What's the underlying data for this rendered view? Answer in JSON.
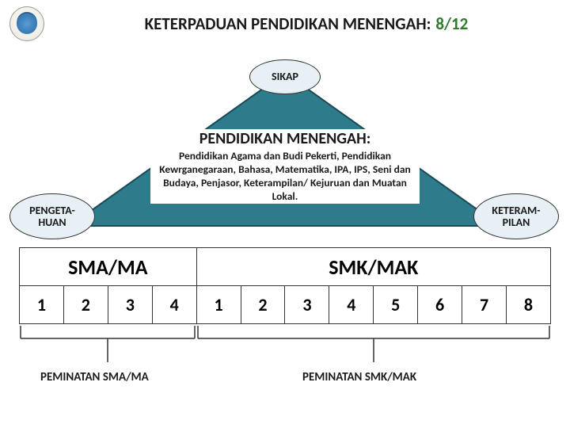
{
  "header": {
    "title_main": "KETERPADUAN PENDIDIKAN MENENGAH:",
    "progress": "8/12",
    "progress_color": "#2f7a2f"
  },
  "pills": {
    "top": {
      "label": "SIKAP",
      "bg": "#e6f0f5"
    },
    "left": {
      "label": "PENGETA-\nHUAN",
      "bg": "#e6f0f5"
    },
    "right": {
      "label": "KETERAM-\nPILAN",
      "bg": "#e6f0f5"
    }
  },
  "triangle": {
    "fill": "#2e7b8c",
    "stroke": "#1a4a56"
  },
  "center": {
    "title": "PENDIDIKAN MENENGAH:",
    "body": "Pendidikan Agama dan Budi Pekerti, Pendidikan Kewrganegaraan, Bahasa, Matematika, IPA, IPS, Seni dan Budaya, Penjasor, Keterampilan/ Kejuruan dan Muatan Lokal.",
    "bg": "#ffffff"
  },
  "table": {
    "group_a": {
      "label": "SMA/MA",
      "cols": [
        "1",
        "2",
        "3",
        "4"
      ]
    },
    "group_b": {
      "label": "SMK/MAK",
      "cols": [
        "1",
        "2",
        "3",
        "4",
        "5",
        "6",
        "7",
        "8"
      ]
    }
  },
  "brackets": {
    "left_label": "PEMINATAN SMA/MA",
    "right_label": "PEMINATAN SMK/MAK",
    "stroke": "#333333"
  }
}
